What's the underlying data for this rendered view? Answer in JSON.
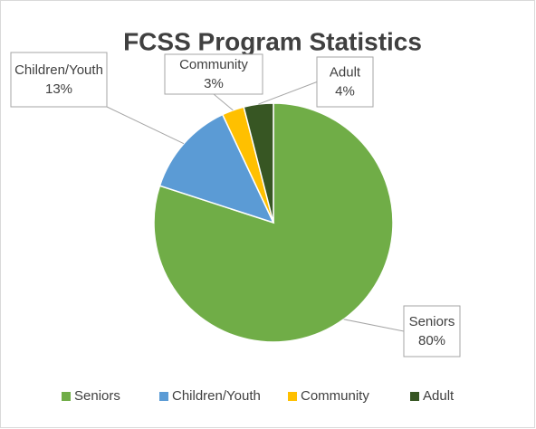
{
  "chart_data": {
    "type": "pie",
    "title": "FCSS Program Statistics",
    "categories": [
      "Seniors",
      "Children/Youth",
      "Community",
      "Adult"
    ],
    "values": [
      80,
      13,
      3,
      4
    ],
    "value_labels": [
      "80%",
      "13%",
      "3%",
      "4%"
    ],
    "colors": [
      "#70ad47",
      "#5b9bd5",
      "#ffc000",
      "#375623"
    ],
    "legend": "bottom"
  }
}
